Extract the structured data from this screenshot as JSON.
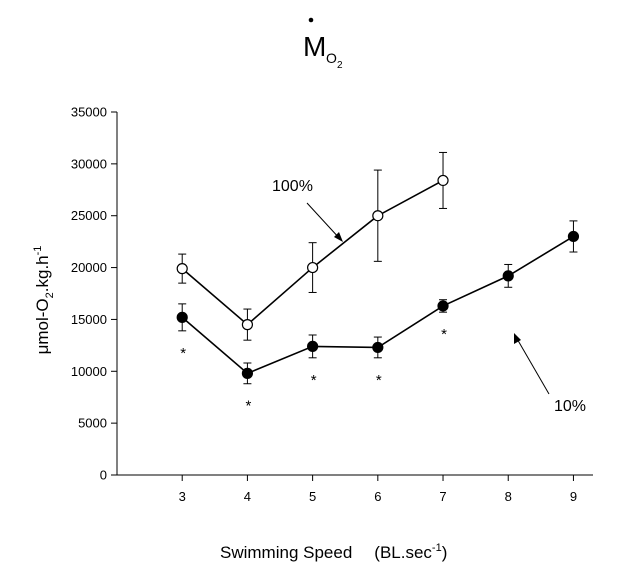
{
  "chart_data": {
    "type": "line",
    "title_main": "M",
    "title_sub": "O",
    "title_subsub": "2",
    "ylabel_parts": [
      "μmol-O",
      "2",
      ".kg.h",
      "-1"
    ],
    "xlabel_main": "Swimming Speed",
    "xlabel_unit_prefix": "(BL.sec",
    "xlabel_unit_exp": "-1",
    "xlabel_unit_suffix": ")",
    "xlim": [
      2,
      9.3
    ],
    "ylim": [
      0,
      35000
    ],
    "xticks": [
      3,
      4,
      5,
      6,
      7,
      8,
      9
    ],
    "yticks": [
      0,
      5000,
      10000,
      15000,
      20000,
      25000,
      30000,
      35000
    ],
    "series": [
      {
        "name": "100%",
        "marker": "open-circle",
        "x": [
          3,
          4,
          5,
          6,
          7
        ],
        "y": [
          19900,
          14500,
          20000,
          25000,
          28400
        ],
        "err": [
          1400,
          1500,
          2400,
          4400,
          2700
        ]
      },
      {
        "name": "10%",
        "marker": "filled-circle",
        "x": [
          3,
          4,
          5,
          6,
          7,
          8,
          9
        ],
        "y": [
          15200,
          9800,
          12400,
          12300,
          16300,
          19200,
          23000
        ],
        "err": [
          1300,
          1000,
          1100,
          1000,
          600,
          1100,
          1500
        ]
      }
    ],
    "significance_marks": [
      {
        "x": 3,
        "label": "*"
      },
      {
        "x": 4,
        "label": "*"
      },
      {
        "x": 5,
        "label": "*"
      },
      {
        "x": 6,
        "label": "*"
      },
      {
        "x": 7,
        "label": "*"
      }
    ],
    "annotations": [
      {
        "series": "100%",
        "text": "100%"
      },
      {
        "series": "10%",
        "text": "10%"
      }
    ]
  }
}
